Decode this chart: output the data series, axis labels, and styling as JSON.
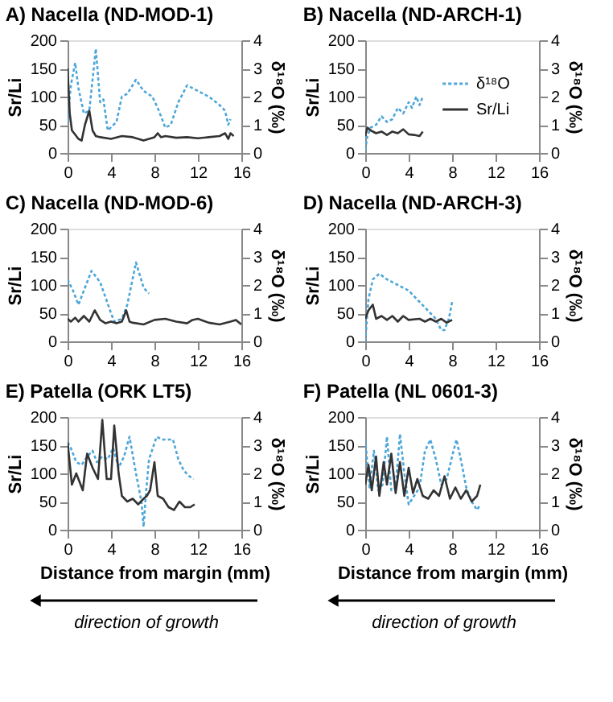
{
  "chart_data": [
    {
      "type": "line",
      "title": "A) Nacella (ND-MOD-1)",
      "ylabel": "Sr/Li",
      "y2label": "δ¹⁸O (‰)",
      "xlim": [
        0,
        16
      ],
      "xticks": [
        0,
        4,
        8,
        12,
        16
      ],
      "ylim": [
        0,
        200
      ],
      "yticks": [
        0,
        50,
        100,
        150,
        200
      ],
      "y2lim": [
        0,
        4
      ],
      "y2ticks": [
        0,
        1,
        2,
        3,
        4
      ],
      "series": [
        {
          "axis": "y2",
          "color": "#4da6d9",
          "line_style": "dotted",
          "x": [
            0,
            0.3,
            0.7,
            1.0,
            1.5,
            2.0,
            2.6,
            3.0,
            3.3,
            3.7,
            4.5,
            5.0,
            5.5,
            6.3,
            7,
            7.8,
            8.3,
            9.0,
            9.5,
            10.2,
            11,
            12,
            13,
            14,
            14.5,
            14.8,
            15
          ],
          "values": [
            1.1,
            2.4,
            3.2,
            2.3,
            1.4,
            1.5,
            3.7,
            1.8,
            1.9,
            0.8,
            1.1,
            2.0,
            2.1,
            2.6,
            2.2,
            2.0,
            1.6,
            0.9,
            1.0,
            1.8,
            2.4,
            2.2,
            2.0,
            1.7,
            1.5,
            1.0,
            1.2
          ]
        },
        {
          "axis": "y",
          "color": "#333333",
          "line_style": "solid",
          "x": [
            0,
            0.2,
            0.4,
            1,
            1.3,
            1.6,
            2.0,
            2.3,
            2.6,
            3,
            4,
            5,
            6,
            7,
            8,
            8.3,
            8.6,
            9,
            10,
            11,
            12,
            13,
            14,
            14.5,
            14.8,
            15,
            15.3
          ],
          "values": [
            150,
            70,
            40,
            25,
            22,
            50,
            75,
            40,
            30,
            28,
            25,
            30,
            28,
            22,
            28,
            35,
            28,
            30,
            27,
            28,
            26,
            28,
            30,
            35,
            25,
            35,
            30
          ]
        }
      ]
    },
    {
      "type": "line",
      "title": "B) Nacella (ND-ARCH-1)",
      "ylabel": "Sr/Li",
      "y2label": "δ¹⁸O (‰)",
      "xlim": [
        0,
        16
      ],
      "xticks": [
        0,
        4,
        8,
        12,
        16
      ],
      "ylim": [
        0,
        200
      ],
      "yticks": [
        0,
        50,
        100,
        150,
        200
      ],
      "y2lim": [
        0,
        4
      ],
      "y2ticks": [
        0,
        1,
        2,
        3,
        4
      ],
      "legend": "top right",
      "series": [
        {
          "name": "δ¹⁸O",
          "axis": "y2",
          "color": "#4da6d9",
          "line_style": "dotted",
          "x": [
            0,
            0.2,
            0.5,
            1,
            1.5,
            2,
            2.5,
            3,
            3.5,
            4,
            4.3,
            4.7,
            5,
            5.3
          ],
          "values": [
            0.1,
            0.6,
            0.9,
            1.0,
            1.3,
            1.1,
            1.2,
            1.6,
            1.4,
            1.8,
            1.6,
            2.0,
            1.7,
            2.0
          ]
        },
        {
          "name": "Sr/Li",
          "axis": "y",
          "color": "#333333",
          "line_style": "solid",
          "x": [
            0,
            0.2,
            0.5,
            1,
            1.5,
            2,
            2.5,
            3,
            3.5,
            4,
            4.5,
            5,
            5.3
          ],
          "values": [
            30,
            45,
            40,
            35,
            38,
            32,
            38,
            35,
            42,
            33,
            32,
            30,
            38
          ]
        }
      ]
    },
    {
      "type": "line",
      "title": "C) Nacella (ND-MOD-6)",
      "ylabel": "Sr/Li",
      "y2label": "δ¹⁸O (‰)",
      "xlim": [
        0,
        16
      ],
      "xticks": [
        0,
        4,
        8,
        12,
        16
      ],
      "ylim": [
        0,
        200
      ],
      "yticks": [
        0,
        50,
        100,
        150,
        200
      ],
      "y2lim": [
        0,
        4
      ],
      "y2ticks": [
        0,
        1,
        2,
        3,
        4
      ],
      "series": [
        {
          "axis": "y2",
          "color": "#4da6d9",
          "line_style": "dotted",
          "x": [
            0,
            0.5,
            1,
            2.2,
            3,
            4.0,
            4.3,
            5,
            5.5,
            6.3,
            7,
            7.5
          ],
          "values": [
            2.2,
            1.8,
            1.3,
            2.5,
            2.1,
            1.0,
            0.7,
            0.8,
            1.3,
            2.8,
            1.9,
            1.7
          ]
        },
        {
          "axis": "y",
          "color": "#333333",
          "line_style": "solid",
          "x": [
            0,
            0.3,
            0.7,
            1,
            1.5,
            2,
            2.5,
            3,
            3.5,
            4,
            4.5,
            5,
            5.4,
            5.7,
            6,
            7,
            8,
            9,
            10,
            11,
            11.5,
            12,
            13,
            14,
            15,
            15.5,
            16
          ],
          "values": [
            40,
            35,
            42,
            35,
            45,
            35,
            55,
            38,
            32,
            35,
            32,
            35,
            55,
            35,
            33,
            30,
            38,
            40,
            35,
            32,
            38,
            40,
            33,
            30,
            35,
            38,
            30
          ]
        }
      ]
    },
    {
      "type": "line",
      "title": "D) Nacella (ND-ARCH-3)",
      "ylabel": "Sr/Li",
      "y2label": "δ¹⁸O (‰)",
      "xlim": [
        0,
        16
      ],
      "xticks": [
        0,
        4,
        8,
        12,
        16
      ],
      "ylim": [
        0,
        200
      ],
      "yticks": [
        0,
        50,
        100,
        150,
        200
      ],
      "y2lim": [
        0,
        4
      ],
      "y2ticks": [
        0,
        1,
        2,
        3,
        4
      ],
      "series": [
        {
          "axis": "y2",
          "color": "#4da6d9",
          "line_style": "dotted",
          "x": [
            0,
            0.3,
            0.7,
            1.3,
            2,
            3,
            4,
            5,
            6,
            6.5,
            7,
            7.3,
            7.7,
            8
          ],
          "values": [
            0,
            1.5,
            2.2,
            2.4,
            2.2,
            2.0,
            1.8,
            1.4,
            1.0,
            0.8,
            0.4,
            0.4,
            0.8,
            1.4
          ]
        },
        {
          "axis": "y",
          "color": "#333333",
          "line_style": "solid",
          "x": [
            0,
            0.3,
            0.7,
            1,
            1.5,
            2,
            2.5,
            3,
            3.5,
            4,
            5,
            5.5,
            6,
            6.5,
            7,
            7.5,
            8
          ],
          "values": [
            40,
            55,
            65,
            40,
            45,
            38,
            45,
            35,
            45,
            38,
            40,
            35,
            40,
            35,
            40,
            33,
            38
          ]
        }
      ]
    },
    {
      "type": "line",
      "title": "E) Patella (ORK LT5)",
      "ylabel": "Sr/Li",
      "y2label": "δ¹⁸O (‰)",
      "xlabel": "Distance from margin (mm)",
      "annotations": [
        "direction of growth"
      ],
      "xlim": [
        0,
        16
      ],
      "xticks": [
        0,
        4,
        8,
        12,
        16
      ],
      "ylim": [
        0,
        200
      ],
      "yticks": [
        0,
        50,
        100,
        150,
        200
      ],
      "y2lim": [
        0,
        4
      ],
      "y2ticks": [
        0,
        1,
        2,
        3,
        4
      ],
      "series": [
        {
          "axis": "y2",
          "color": "#4da6d9",
          "line_style": "dotted",
          "x": [
            0,
            0.3,
            0.8,
            1.3,
            1.8,
            2.3,
            2.7,
            3.2,
            3.7,
            4.2,
            4.7,
            5.2,
            5.7,
            6.3,
            6.8,
            7.0,
            7.2,
            7.5,
            8.2,
            8.7,
            9.2,
            9.7,
            10.2,
            10.7,
            11.2,
            11.6
          ],
          "values": [
            3.1,
            2.9,
            2.4,
            2.3,
            2.6,
            2.8,
            2.4,
            2.6,
            2.5,
            2.9,
            2.2,
            2.6,
            3.3,
            2.0,
            1.0,
            0.1,
            1.2,
            2.5,
            3.3,
            3.2,
            3.2,
            3.2,
            2.5,
            2.1,
            1.9,
            1.8
          ]
        },
        {
          "axis": "y",
          "color": "#333333",
          "line_style": "solid",
          "x": [
            0,
            0.4,
            0.8,
            1.4,
            1.8,
            2.3,
            2.8,
            3.2,
            3.6,
            4.0,
            4.3,
            4.7,
            5.0,
            5.5,
            6,
            6.5,
            7,
            7.3,
            7.6,
            8,
            8.3,
            8.8,
            9.3,
            9.8,
            10.3,
            10.8,
            11.3,
            11.7
          ],
          "values": [
            155,
            80,
            100,
            70,
            135,
            110,
            90,
            195,
            90,
            90,
            185,
            100,
            60,
            50,
            55,
            45,
            55,
            60,
            70,
            120,
            60,
            55,
            40,
            35,
            50,
            40,
            40,
            45
          ]
        }
      ]
    },
    {
      "type": "line",
      "title": "F) Patella (NL 0601-3)",
      "ylabel": "Sr/Li",
      "y2label": "δ¹⁸O (‰)",
      "xlabel": "Distance from margin (mm)",
      "annotations": [
        "direction of growth"
      ],
      "xlim": [
        0,
        16
      ],
      "xticks": [
        0,
        4,
        8,
        12,
        16
      ],
      "ylim": [
        0,
        200
      ],
      "yticks": [
        0,
        50,
        100,
        150,
        200
      ],
      "y2lim": [
        0,
        4
      ],
      "y2ticks": [
        0,
        1,
        2,
        3,
        4
      ],
      "series": [
        {
          "axis": "y2",
          "color": "#4da6d9",
          "line_style": "dotted",
          "x": [
            0,
            0.4,
            0.8,
            1.2,
            1.6,
            2.0,
            2.4,
            2.8,
            3.2,
            3.6,
            4.0,
            4.5,
            5,
            5.5,
            6,
            6.5,
            7,
            7.5,
            8,
            8.4,
            8.8,
            9.3,
            9.8,
            10.3,
            10.6
          ],
          "values": [
            3.2,
            1.5,
            2.8,
            1.4,
            1.6,
            3.3,
            1.4,
            1.5,
            3.4,
            2.0,
            0.9,
            1.2,
            1.5,
            2.8,
            3.2,
            2.5,
            1.6,
            1.8,
            2.6,
            3.2,
            2.5,
            1.5,
            1.0,
            0.7,
            0.9
          ]
        },
        {
          "axis": "y",
          "color": "#333333",
          "line_style": "solid",
          "x": [
            0,
            0.3,
            0.6,
            1,
            1.3,
            1.7,
            2,
            2.4,
            2.8,
            3.2,
            3.6,
            4,
            4.4,
            4.8,
            5.3,
            5.8,
            6.3,
            6.8,
            7.3,
            7.8,
            8.3,
            8.8,
            9.3,
            9.8,
            10.3,
            10.6
          ],
          "values": [
            80,
            115,
            70,
            130,
            60,
            120,
            80,
            135,
            65,
            120,
            60,
            110,
            65,
            90,
            60,
            55,
            70,
            60,
            95,
            55,
            75,
            55,
            70,
            50,
            60,
            80
          ]
        }
      ]
    }
  ]
}
